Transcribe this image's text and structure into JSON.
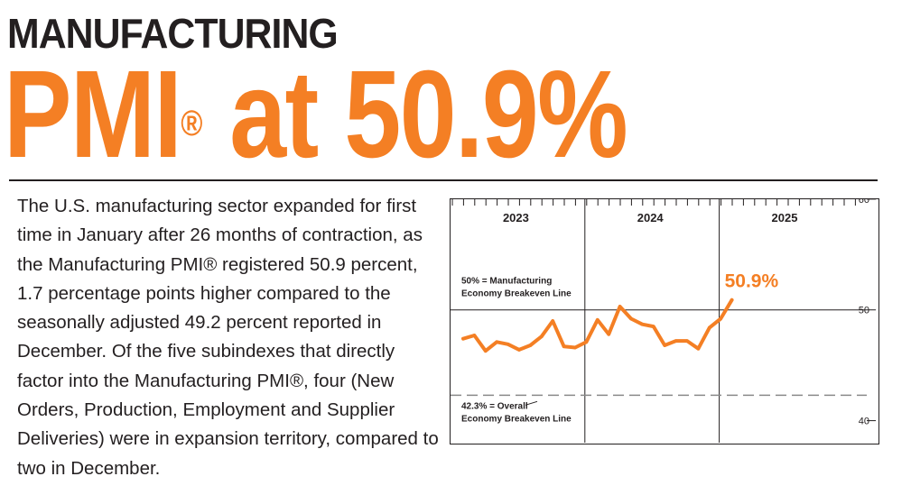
{
  "header": {
    "kicker": "MANUFACTURING",
    "headline_main": "PMI",
    "headline_reg": "®",
    "headline_tail": " at 50.9%"
  },
  "article": {
    "paragraph": "The U.S. manufacturing sector expanded for first time in January after 26 months of contraction, as the Manufacturing PMI® registered 50.9 percent, 1.7 percentage points higher compared to the seasonally adjusted 49.2 percent reported in December. Of the five subindexes that directly factor into the Manufacturing PMI®, four (New Orders, Production, Employment and Supplier Deliveries) were in expansion territory, compared to two in December."
  },
  "colors": {
    "accent": "#f47f24",
    "ink": "#231f20"
  },
  "chart_data": {
    "type": "line",
    "x_start": "2023-01",
    "x_labels": [
      "2023",
      "2024",
      "2025"
    ],
    "y_ticks": [
      40,
      50,
      60
    ],
    "ylim": [
      38.5,
      59.5
    ],
    "series": [
      {
        "values": [
          47.4,
          47.7,
          46.3,
          47.1,
          46.9,
          46.4,
          46.8,
          47.6,
          49.0,
          46.7,
          46.6,
          47.1,
          49.1,
          47.8,
          50.3,
          49.2,
          48.7,
          48.5,
          46.8,
          47.2,
          47.2,
          46.5,
          48.4,
          49.2,
          50.9
        ]
      }
    ],
    "reference_lines": [
      {
        "value": 50,
        "label_line1": "50% = Manufacturing",
        "label_line2": "Economy Breakeven Line",
        "style": "solid"
      },
      {
        "value": 42.3,
        "label_line1": "42.3% = Overall",
        "label_line2": "Economy Breakeven Line",
        "style": "dashed"
      }
    ],
    "callout": "50.9%",
    "grid": false
  }
}
